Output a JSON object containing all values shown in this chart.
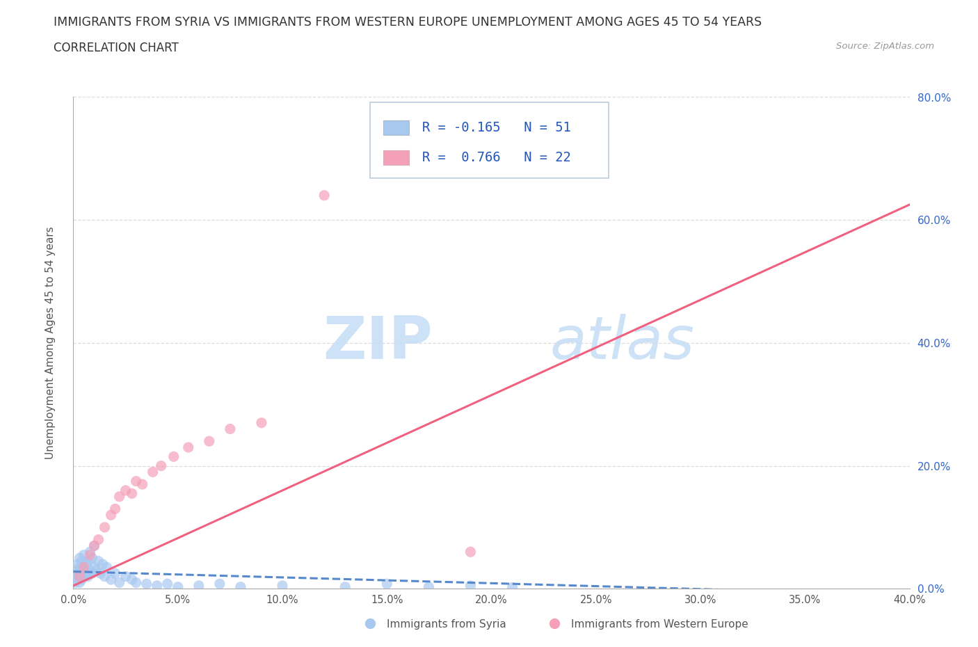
{
  "title": "IMMIGRANTS FROM SYRIA VS IMMIGRANTS FROM WESTERN EUROPE UNEMPLOYMENT AMONG AGES 45 TO 54 YEARS",
  "subtitle": "CORRELATION CHART",
  "source": "Source: ZipAtlas.com",
  "ylabel": "Unemployment Among Ages 45 to 54 years",
  "xlim": [
    0.0,
    0.4
  ],
  "ylim": [
    0.0,
    0.8
  ],
  "xticks": [
    0.0,
    0.05,
    0.1,
    0.15,
    0.2,
    0.25,
    0.3,
    0.35,
    0.4
  ],
  "yticks": [
    0.0,
    0.2,
    0.4,
    0.6,
    0.8
  ],
  "color_syria": "#a8c8f0",
  "color_western": "#f4a0b8",
  "trend_color_syria": "#5588cc",
  "trend_color_western": "#f06080",
  "legend_r_syria": "-0.165",
  "legend_n_syria": "51",
  "legend_r_western": "0.766",
  "legend_n_western": "22",
  "label_syria": "Immigrants from Syria",
  "label_western": "Immigrants from Western Europe",
  "watermark_zip": "ZIP",
  "watermark_atlas": "atlas",
  "watermark_color": "#c5ddf5",
  "syria_x": [
    0.001,
    0.001,
    0.001,
    0.002,
    0.002,
    0.002,
    0.003,
    0.003,
    0.003,
    0.003,
    0.004,
    0.004,
    0.004,
    0.005,
    0.005,
    0.005,
    0.006,
    0.006,
    0.007,
    0.007,
    0.008,
    0.008,
    0.009,
    0.009,
    0.01,
    0.01,
    0.011,
    0.012,
    0.013,
    0.014,
    0.015,
    0.016,
    0.018,
    0.02,
    0.022,
    0.025,
    0.028,
    0.03,
    0.035,
    0.04,
    0.045,
    0.05,
    0.06,
    0.07,
    0.08,
    0.1,
    0.13,
    0.15,
    0.17,
    0.19,
    0.21
  ],
  "syria_y": [
    0.01,
    0.02,
    0.03,
    0.015,
    0.025,
    0.04,
    0.01,
    0.02,
    0.035,
    0.05,
    0.015,
    0.03,
    0.045,
    0.02,
    0.035,
    0.055,
    0.025,
    0.04,
    0.02,
    0.045,
    0.03,
    0.06,
    0.025,
    0.05,
    0.035,
    0.07,
    0.03,
    0.045,
    0.025,
    0.04,
    0.02,
    0.035,
    0.015,
    0.025,
    0.01,
    0.02,
    0.015,
    0.01,
    0.008,
    0.005,
    0.008,
    0.003,
    0.005,
    0.008,
    0.003,
    0.005,
    0.003,
    0.008,
    0.003,
    0.005,
    0.002
  ],
  "western_x": [
    0.003,
    0.005,
    0.008,
    0.01,
    0.012,
    0.015,
    0.018,
    0.02,
    0.022,
    0.025,
    0.028,
    0.03,
    0.033,
    0.038,
    0.042,
    0.048,
    0.055,
    0.065,
    0.075,
    0.09,
    0.12,
    0.19
  ],
  "western_y": [
    0.02,
    0.035,
    0.055,
    0.07,
    0.08,
    0.1,
    0.12,
    0.13,
    0.15,
    0.16,
    0.155,
    0.175,
    0.17,
    0.19,
    0.2,
    0.215,
    0.23,
    0.24,
    0.26,
    0.27,
    0.64,
    0.06
  ],
  "trend_syria_x0": 0.0,
  "trend_syria_x1": 0.4,
  "trend_syria_y0": 0.028,
  "trend_syria_y1": -0.01,
  "trend_western_x0": 0.0,
  "trend_western_x1": 0.4,
  "trend_western_y0": 0.005,
  "trend_western_y1": 0.625
}
